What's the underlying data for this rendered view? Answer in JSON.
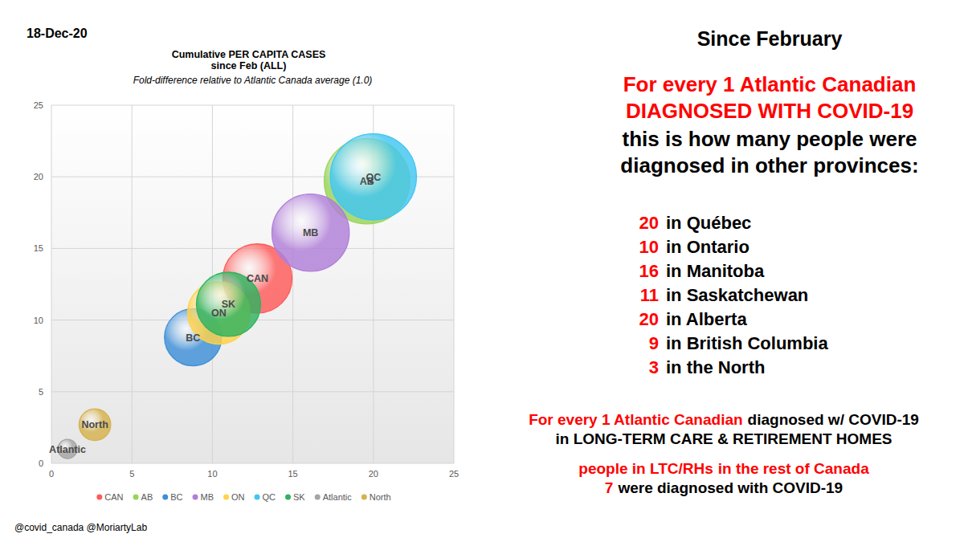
{
  "date": "18-Dec-20",
  "credit": "@covid_canada @MoriartyLab",
  "chart_data": {
    "type": "bubble",
    "title": [
      "Cumulative PER CAPITA CASES",
      "since Feb (ALL)"
    ],
    "subtitle": "Fold-difference relative to Atlantic Canada average (1.0)",
    "xlim": [
      0,
      25
    ],
    "ylim": [
      0,
      25
    ],
    "xticks": [
      0,
      5,
      10,
      15,
      20,
      25
    ],
    "yticks": [
      0,
      5,
      10,
      15,
      20,
      25
    ],
    "grid": true,
    "legend": "bottom",
    "series": [
      {
        "name": "CAN",
        "color": "#ff5a5a",
        "x": [
          12.8
        ],
        "values": [
          12.9
        ],
        "sizes": [
          12.9
        ]
      },
      {
        "name": "AB",
        "color": "#99d45a",
        "x": [
          19.6
        ],
        "values": [
          19.7
        ],
        "sizes": [
          19.7
        ]
      },
      {
        "name": "BC",
        "color": "#3d8fd8",
        "x": [
          8.8
        ],
        "values": [
          8.8
        ],
        "sizes": [
          8.8
        ]
      },
      {
        "name": "MB",
        "color": "#b07fd8",
        "x": [
          16.1
        ],
        "values": [
          16.1
        ],
        "sizes": [
          16.1
        ]
      },
      {
        "name": "ON",
        "color": "#ffd24a",
        "x": [
          10.4
        ],
        "values": [
          10.5
        ],
        "sizes": [
          10.5
        ]
      },
      {
        "name": "QC",
        "color": "#41c6f2",
        "x": [
          20
        ],
        "values": [
          20
        ],
        "sizes": [
          20
        ]
      },
      {
        "name": "SK",
        "color": "#2fb35f",
        "x": [
          11
        ],
        "values": [
          11.1
        ],
        "sizes": [
          11.1
        ]
      },
      {
        "name": "Atlantic",
        "color": "#a5a5a5",
        "x": [
          1
        ],
        "values": [
          1
        ],
        "sizes": [
          1
        ]
      },
      {
        "name": "North",
        "color": "#d6b24e",
        "x": [
          2.7
        ],
        "values": [
          2.7
        ],
        "sizes": [
          2.7
        ]
      }
    ]
  },
  "panel": {
    "heading": "Since February",
    "lead": [
      "For every 1 Atlantic Canadian",
      "DIAGNOSED WITH COVID-19"
    ],
    "question": [
      "this is how many people were",
      "diagnosed in other provinces:"
    ],
    "rows": [
      {
        "value": 20,
        "label": "in Québec"
      },
      {
        "value": 10,
        "label": "in Ontario"
      },
      {
        "value": 16,
        "label": "in Manitoba"
      },
      {
        "value": 11,
        "label": "in Saskatchewan"
      },
      {
        "value": 20,
        "label": "in Alberta"
      },
      {
        "value": 9,
        "label": "in British Columbia"
      },
      {
        "value": 3,
        "label": "in the North"
      }
    ],
    "ltc": [
      [
        "For every 1 Atlantic Canadian",
        "diagnosed w/ COVID-19"
      ],
      [
        "in LONG-TERM CARE & RETIREMENT HOMES"
      ],
      [
        "people in LTC/RHs",
        "in the rest of Canada"
      ],
      [
        7,
        "were diagnosed with COVID-19"
      ]
    ]
  }
}
